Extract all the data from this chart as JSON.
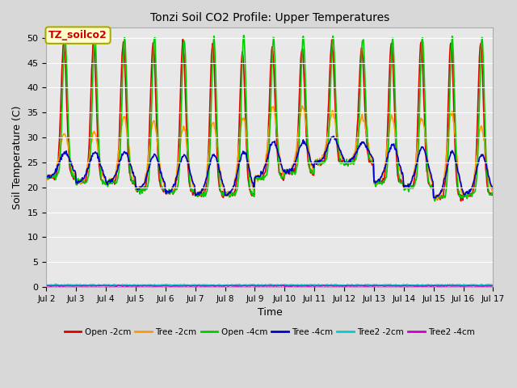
{
  "title": "Tonzi Soil CO2 Profile: Upper Temperatures",
  "xlabel": "Time",
  "ylabel": "Soil Temperature (C)",
  "ylim": [
    0,
    52
  ],
  "yticks": [
    0,
    5,
    10,
    15,
    20,
    25,
    30,
    35,
    40,
    45,
    50
  ],
  "xlim": [
    0,
    360
  ],
  "fig_bg": "#d8d8d8",
  "ax_bg": "#e8e8e8",
  "annotation_text": "TZ_soilco2",
  "annotation_color": "#cc0000",
  "annotation_bg": "#ffffcc",
  "annotation_border": "#aaaa00",
  "series": {
    "Open_2cm": {
      "color": "#dd0000",
      "label": "Open -2cm",
      "lw": 1.2
    },
    "Tree_2cm": {
      "color": "#ff9900",
      "label": "Tree -2cm",
      "lw": 1.2
    },
    "Open_4cm": {
      "color": "#00cc00",
      "label": "Open -4cm",
      "lw": 1.2
    },
    "Tree_4cm": {
      "color": "#0000cc",
      "label": "Tree -4cm",
      "lw": 1.2
    },
    "Tree2_2cm": {
      "color": "#00cccc",
      "label": "Tree2 -2cm",
      "lw": 1.2
    },
    "Tree2_4cm": {
      "color": "#cc00cc",
      "label": "Tree2 -4cm",
      "lw": 1.2
    }
  },
  "xtick_positions": [
    0,
    24,
    48,
    72,
    96,
    120,
    144,
    168,
    192,
    216,
    240,
    264,
    288,
    312,
    336,
    360
  ],
  "xtick_labels": [
    "Jul 2",
    "Jul 3",
    "Jul 4",
    "Jul 5",
    "Jul 6",
    "Jul 7",
    "Jul 8",
    "Jul 9",
    "Jul 10",
    "Jul 11",
    "Jul 12",
    "Jul 13",
    "Jul 14",
    "Jul 15",
    "Jul 16",
    "Jul 17"
  ],
  "n_days": 15,
  "points_per_day": 48
}
